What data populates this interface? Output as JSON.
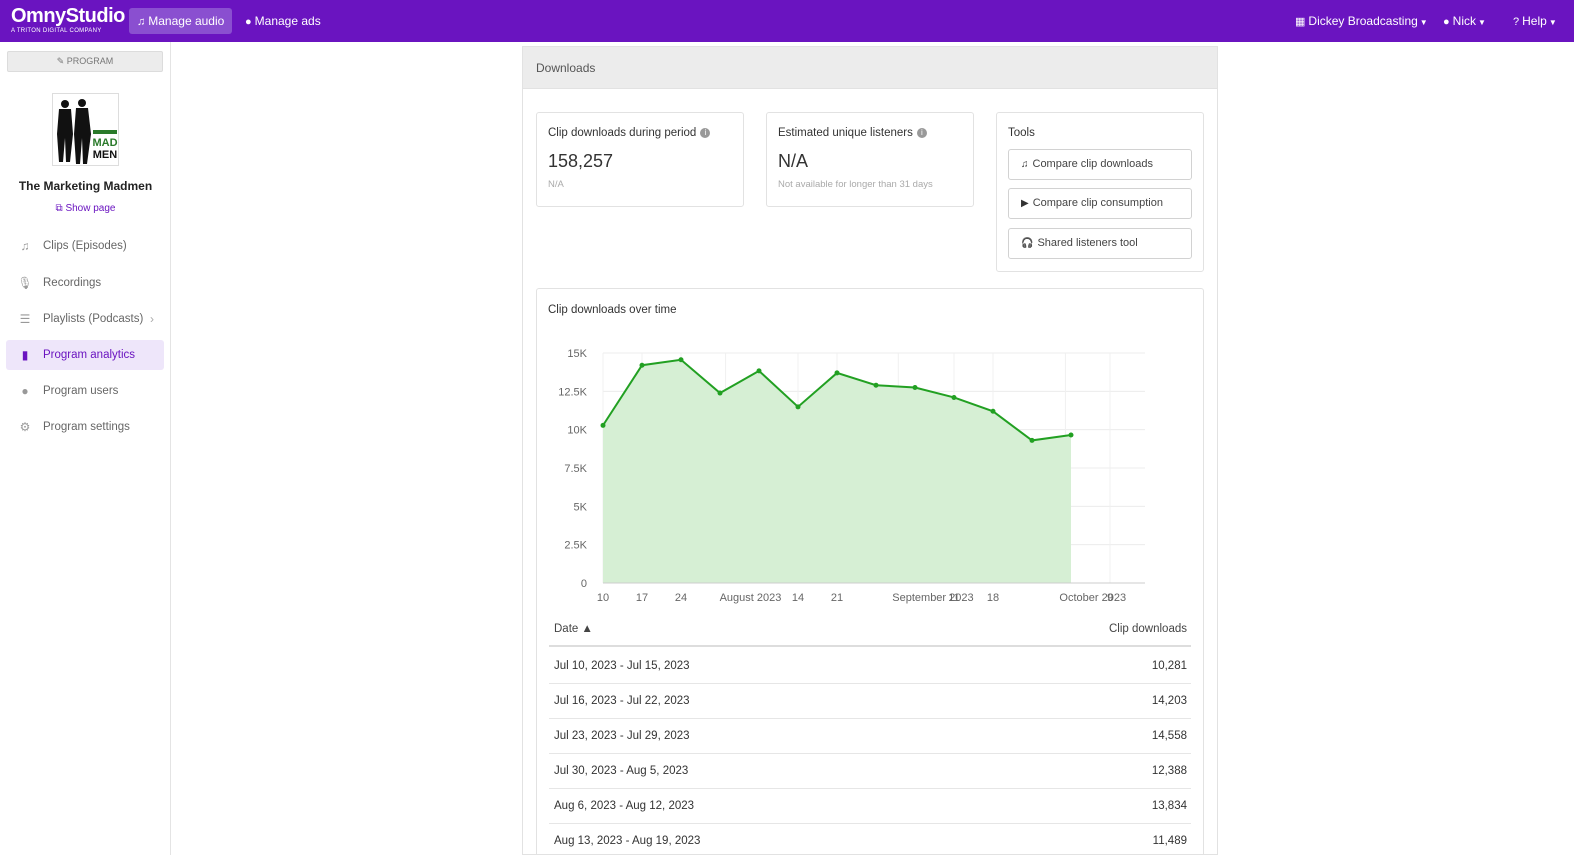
{
  "topbar": {
    "logo_main": "OmnyStudio",
    "logo_sub": "A TRITON DIGITAL COMPANY",
    "manage_audio": "Manage audio",
    "manage_ads": "Manage ads",
    "org": "Dickey Broadcasting",
    "user": "Nick",
    "help": "Help"
  },
  "sidebar": {
    "program_button": "PROGRAM",
    "program_name": "The Marketing Madmen",
    "show_page": "Show page",
    "items": [
      {
        "label": "Clips (Episodes)",
        "icon": "music-note-icon"
      },
      {
        "label": "Recordings",
        "icon": "microphone-icon"
      },
      {
        "label": "Playlists (Podcasts)",
        "icon": "list-icon"
      },
      {
        "label": "Program analytics",
        "icon": "bar-chart-icon"
      },
      {
        "label": "Program users",
        "icon": "user-icon"
      },
      {
        "label": "Program settings",
        "icon": "gear-icon"
      }
    ],
    "active_item": "Program analytics"
  },
  "panel": {
    "header": "Downloads",
    "clip_downloads": {
      "title": "Clip downloads during period",
      "value": "158,257",
      "sub": "N/A"
    },
    "unique_listeners": {
      "title": "Estimated unique listeners",
      "value": "N/A",
      "sub": "Not available for longer than 31 days"
    },
    "tools": {
      "title": "Tools",
      "buttons": [
        "Compare clip downloads",
        "Compare clip consumption",
        "Shared listeners tool"
      ]
    }
  },
  "chart_data": {
    "type": "area",
    "title": "Clip downloads over time",
    "x_tick_labels": [
      "10",
      "17",
      "24",
      "August 2023",
      "14",
      "21",
      "September 2023",
      "11",
      "18",
      "October 2023",
      "9"
    ],
    "y_tick_labels": [
      "0",
      "2.5K",
      "5K",
      "7.5K",
      "10K",
      "12.5K",
      "15K"
    ],
    "ylim": [
      0,
      15000
    ],
    "series": [
      {
        "x": [
          "2023-07-10",
          "2023-07-17",
          "2023-07-24",
          "2023-07-31",
          "2023-08-07",
          "2023-08-14",
          "2023-08-21",
          "2023-08-28",
          "2023-09-04",
          "2023-09-11",
          "2023-09-18",
          "2023-09-25",
          "2023-10-02"
        ],
        "values": [
          10281,
          14203,
          14558,
          12388,
          13834,
          11489,
          13700,
          12900,
          12750,
          12100,
          11200,
          9300,
          9650
        ]
      }
    ],
    "color": "#22a022",
    "fill_color": "#d6efd4",
    "grid": true
  },
  "table": {
    "col_date": "Date ▲",
    "col_downloads": "Clip downloads",
    "rows": [
      {
        "date": "Jul 10, 2023 - Jul 15, 2023",
        "downloads": "10,281"
      },
      {
        "date": "Jul 16, 2023 - Jul 22, 2023",
        "downloads": "14,203"
      },
      {
        "date": "Jul 23, 2023 - Jul 29, 2023",
        "downloads": "14,558"
      },
      {
        "date": "Jul 30, 2023 - Aug 5, 2023",
        "downloads": "12,388"
      },
      {
        "date": "Aug 6, 2023 - Aug 12, 2023",
        "downloads": "13,834"
      },
      {
        "date": "Aug 13, 2023 - Aug 19, 2023",
        "downloads": "11,489"
      }
    ]
  }
}
